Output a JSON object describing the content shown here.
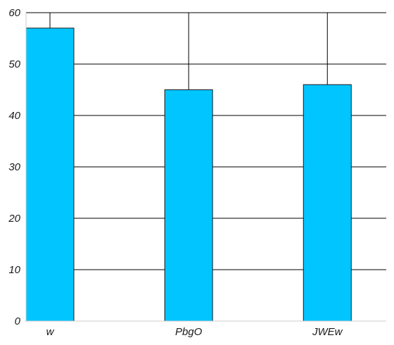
{
  "chart_data": {
    "type": "bar",
    "categories": [
      "w",
      "PbgO",
      "JWEw"
    ],
    "values": [
      57,
      45,
      46
    ],
    "title": "",
    "xlabel": "",
    "ylabel": "",
    "ylim": [
      0,
      60
    ],
    "yticks": [
      0,
      10,
      20,
      30,
      40,
      50,
      60
    ],
    "grid": true,
    "colors": {
      "bar_fill": "#00c5ff",
      "bar_stroke": "#1a1a1a",
      "grid": "#000000",
      "axis": "#cccccc"
    }
  }
}
